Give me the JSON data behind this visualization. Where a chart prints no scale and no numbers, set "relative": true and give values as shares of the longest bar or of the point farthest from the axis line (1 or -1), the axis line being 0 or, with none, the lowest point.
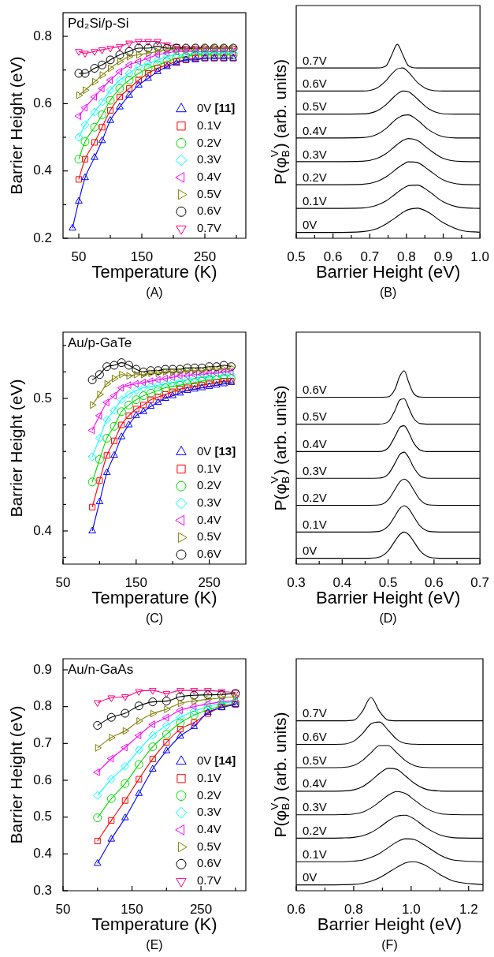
{
  "chart_data": [
    {
      "type": "line",
      "title": "Pd₂Si/p-Si",
      "xlabel": "Temperature (K)",
      "ylabel": "Barrier Height (eV)",
      "annotations": [
        "(A)"
      ],
      "legend": "bottom right",
      "x": [
        40,
        50,
        60,
        75,
        87,
        100,
        115,
        130,
        145,
        160,
        175,
        190,
        205,
        220,
        235,
        250,
        265,
        280,
        295
      ],
      "xlim": [
        25,
        315
      ],
      "xticks": [
        50,
        {
          "value": 100,
          "label": null
        },
        150,
        {
          "value": 200,
          "label": null
        },
        250,
        {
          "value": 300,
          "label": null
        }
      ],
      "ylim": [
        0.2,
        0.87
      ],
      "yticks": [
        0.2,
        {
          "value": 0.3,
          "label": null
        },
        0.4,
        {
          "value": 0.5,
          "label": null
        },
        0.6,
        {
          "value": 0.7,
          "label": null
        },
        0.8
      ],
      "series": [
        {
          "name": "0V [11]",
          "color": "#0000ff",
          "marker": "triangle",
          "values": [
            0.23,
            0.31,
            0.38,
            0.44,
            0.49,
            0.55,
            0.59,
            0.625,
            0.655,
            0.675,
            0.695,
            0.71,
            0.72,
            0.73,
            0.73,
            0.735,
            0.735,
            0.735,
            0.735
          ]
        },
        {
          "name": "0.1V",
          "color": "#ff0000",
          "marker": "square",
          "values": [
            null,
            0.375,
            0.435,
            0.485,
            0.53,
            0.58,
            0.62,
            0.645,
            0.67,
            0.69,
            0.705,
            0.715,
            0.725,
            0.73,
            0.735,
            0.735,
            0.735,
            0.735,
            0.735
          ]
        },
        {
          "name": "0.2V",
          "color": "#00dd00",
          "marker": "circle",
          "values": [
            null,
            0.435,
            0.487,
            0.53,
            0.567,
            0.61,
            0.645,
            0.67,
            0.69,
            0.705,
            0.715,
            0.725,
            0.735,
            0.74,
            0.745,
            0.745,
            0.745,
            0.745,
            0.745
          ]
        },
        {
          "name": "0.3V",
          "color": "#00ffff",
          "marker": "diamond",
          "values": [
            null,
            0.5,
            0.537,
            0.575,
            0.605,
            0.64,
            0.67,
            0.69,
            0.71,
            0.72,
            0.73,
            0.74,
            0.745,
            0.745,
            0.75,
            0.75,
            0.75,
            0.75,
            0.75
          ]
        },
        {
          "name": "0.4V",
          "color": "#ff00ff",
          "marker": "triangle-left",
          "values": [
            null,
            0.563,
            0.588,
            0.62,
            0.645,
            0.67,
            0.695,
            0.715,
            0.725,
            0.735,
            0.745,
            0.75,
            0.755,
            0.755,
            0.755,
            0.755,
            0.755,
            0.755,
            0.755
          ]
        },
        {
          "name": "0.5V",
          "color": "#808000",
          "marker": "triangle-right",
          "values": [
            null,
            0.625,
            0.64,
            0.665,
            0.685,
            0.705,
            0.725,
            0.74,
            0.745,
            0.75,
            0.755,
            0.76,
            0.76,
            0.76,
            0.76,
            0.765,
            0.765,
            0.765,
            0.765
          ]
        },
        {
          "name": "0.6V",
          "color": "#000000",
          "marker": "circle",
          "values": [
            null,
            0.69,
            0.69,
            0.705,
            0.715,
            0.73,
            0.745,
            0.755,
            0.765,
            0.765,
            0.77,
            0.765,
            0.765,
            0.765,
            0.765,
            0.765,
            0.765,
            0.765,
            0.765
          ]
        },
        {
          "name": "0.7V",
          "color": "#ff0080",
          "marker": "triangle-down",
          "values": [
            null,
            0.755,
            0.75,
            0.755,
            0.76,
            0.765,
            0.77,
            0.78,
            0.785,
            0.785,
            0.785,
            0.775,
            0.77,
            0.765,
            0.765,
            0.765,
            0.765,
            0.765,
            0.765
          ]
        }
      ]
    },
    {
      "type": "line",
      "relative": true,
      "marker": "none",
      "tick_labels": "x",
      "xlabel": "Barrier Height (eV)",
      "ylabel": "P(φ$_{B}$$^{V}$) (arb. units)",
      "annotations": [
        "(B)"
      ],
      "x": [
        0.5,
        0.6,
        0.68,
        0.72,
        0.745,
        0.76,
        0.775,
        0.79,
        0.805,
        0.83,
        0.86,
        0.9,
        0.95,
        1.0
      ],
      "xlim": [
        0.5,
        1.0
      ],
      "xticks": [
        0.5,
        {
          "value": 0.55,
          "label": null
        },
        0.6,
        {
          "value": 0.65,
          "label": null
        },
        0.7,
        {
          "value": 0.75,
          "label": null
        },
        0.8,
        {
          "value": 0.85,
          "label": null
        },
        0.9,
        {
          "value": 0.95,
          "label": null
        },
        {
          "value": 1.0,
          "label": "1.0"
        }
      ],
      "series": [
        {
          "name": "0V",
          "color": "#000000",
          "values": [
            0.03,
            0.03,
            0.034,
            0.05,
            0.074,
            0.093,
            0.113,
            0.133,
            0.148,
            0.155,
            0.133,
            0.08,
            0.04,
            0.031
          ]
        },
        {
          "name": "0.1V",
          "color": "#000000",
          "values": [
            0.154,
            0.154,
            0.156,
            0.171,
            0.193,
            0.214,
            0.236,
            0.256,
            0.271,
            0.274,
            0.243,
            0.188,
            0.158,
            0.154
          ]
        },
        {
          "name": "0.2V",
          "color": "#000000",
          "values": [
            0.276,
            0.276,
            0.278,
            0.293,
            0.317,
            0.338,
            0.361,
            0.38,
            0.394,
            0.39,
            0.353,
            0.301,
            0.278,
            0.276
          ]
        },
        {
          "name": "0.3V",
          "color": "#000000",
          "values": [
            0.395,
            0.395,
            0.397,
            0.412,
            0.437,
            0.46,
            0.484,
            0.504,
            0.514,
            0.504,
            0.46,
            0.412,
            0.396,
            0.395
          ]
        },
        {
          "name": "0.4V",
          "color": "#000000",
          "values": [
            0.517,
            0.517,
            0.519,
            0.536,
            0.567,
            0.594,
            0.618,
            0.633,
            0.636,
            0.609,
            0.56,
            0.524,
            0.517,
            0.517
          ]
        },
        {
          "name": "0.5V",
          "color": "#000000",
          "values": [
            0.64,
            0.64,
            0.641,
            0.657,
            0.69,
            0.718,
            0.744,
            0.759,
            0.756,
            0.718,
            0.668,
            0.642,
            0.64,
            0.64
          ]
        },
        {
          "name": "0.6V",
          "color": "#000000",
          "values": [
            0.759,
            0.759,
            0.759,
            0.775,
            0.814,
            0.848,
            0.873,
            0.878,
            0.857,
            0.803,
            0.767,
            0.759,
            0.759,
            0.759
          ]
        },
        {
          "name": "0.7V",
          "color": "#000000",
          "values": [
            0.878,
            0.878,
            0.878,
            0.878,
            0.89,
            0.946,
            1.0,
            0.946,
            0.89,
            0.878,
            0.878,
            0.878,
            0.878,
            0.878
          ]
        }
      ]
    },
    {
      "type": "line",
      "title": "Au/p-GaTe",
      "xlabel": "Temperature (K)",
      "ylabel": "Barrier Height (eV)",
      "annotations": [
        "(C)"
      ],
      "legend": "bottom right",
      "x": [
        90,
        100,
        110,
        120,
        130,
        140,
        150,
        160,
        170,
        180,
        190,
        200,
        210,
        220,
        230,
        240,
        250,
        260,
        270,
        280
      ],
      "xlim": [
        50,
        300
      ],
      "xticks": [
        50,
        {
          "value": 100,
          "label": null
        },
        150,
        {
          "value": 200,
          "label": null
        },
        250
      ],
      "ylim": [
        0.375,
        0.55
      ],
      "yticks": [
        {
          "value": 0.38,
          "label": null
        },
        0.4,
        {
          "value": 0.42,
          "label": null
        },
        {
          "value": 0.44,
          "label": null
        },
        {
          "value": 0.46,
          "label": null
        },
        {
          "value": 0.48,
          "label": null
        },
        0.5,
        {
          "value": 0.52,
          "label": null
        },
        {
          "value": 0.54,
          "label": null
        }
      ],
      "series": [
        {
          "name": "0V [13]",
          "color": "#0000ff",
          "marker": "triangle",
          "values": [
            0.4,
            0.422,
            0.444,
            0.457,
            0.471,
            0.48,
            0.487,
            0.49,
            0.494,
            0.497,
            0.5,
            0.502,
            0.504,
            0.506,
            0.507,
            0.508,
            0.509,
            0.51,
            0.511,
            0.512
          ]
        },
        {
          "name": "0.1V",
          "color": "#ff0000",
          "marker": "square",
          "values": [
            0.418,
            0.438,
            0.457,
            0.468,
            0.48,
            0.487,
            0.492,
            0.495,
            0.499,
            0.501,
            0.503,
            0.505,
            0.507,
            0.508,
            0.509,
            0.51,
            0.511,
            0.512,
            0.513,
            0.513
          ]
        },
        {
          "name": "0.2V",
          "color": "#00dd00",
          "marker": "circle",
          "values": [
            0.437,
            0.454,
            0.47,
            0.479,
            0.49,
            0.495,
            0.499,
            0.502,
            0.504,
            0.506,
            0.508,
            0.509,
            0.51,
            0.511,
            0.512,
            0.513,
            0.514,
            0.514,
            0.515,
            0.515
          ]
        },
        {
          "name": "0.3V",
          "color": "#00ffff",
          "marker": "diamond",
          "values": [
            0.456,
            0.47,
            0.484,
            0.491,
            0.499,
            0.503,
            0.506,
            0.508,
            0.509,
            0.51,
            0.511,
            0.512,
            0.513,
            0.514,
            0.515,
            0.516,
            0.516,
            0.517,
            0.517,
            0.518
          ]
        },
        {
          "name": "0.4V",
          "color": "#ff00ff",
          "marker": "triangle-left",
          "values": [
            0.476,
            0.487,
            0.497,
            0.502,
            0.508,
            0.51,
            0.511,
            0.512,
            0.513,
            0.514,
            0.515,
            0.516,
            0.517,
            0.517,
            0.518,
            0.518,
            0.519,
            0.519,
            0.52,
            0.52
          ]
        },
        {
          "name": "0.5V",
          "color": "#808000",
          "marker": "triangle-right",
          "values": [
            0.495,
            0.503,
            0.511,
            0.515,
            0.518,
            0.517,
            0.518,
            0.518,
            0.519,
            0.519,
            0.52,
            0.52,
            0.52,
            0.521,
            0.521,
            0.521,
            0.522,
            0.522,
            0.522,
            0.523
          ]
        },
        {
          "name": "0.6V",
          "color": "#000000",
          "marker": "circle",
          "values": [
            0.514,
            0.518,
            0.524,
            0.525,
            0.527,
            0.525,
            0.522,
            0.52,
            0.521,
            0.521,
            0.522,
            0.522,
            0.522,
            0.523,
            0.523,
            0.523,
            0.524,
            0.524,
            0.525,
            0.524
          ]
        }
      ]
    },
    {
      "type": "line",
      "relative": true,
      "marker": "none",
      "tick_labels": "x",
      "xlabel": "Barrier Height (eV)",
      "ylabel": "P(φ$_{B}$$^{V}$) (arb. units)",
      "annotations": [
        "(D)"
      ],
      "x": [
        0.3,
        0.45,
        0.48,
        0.5,
        0.515,
        0.525,
        0.535,
        0.545,
        0.555,
        0.57,
        0.59,
        0.62,
        0.7
      ],
      "xlim": [
        0.3,
        0.7
      ],
      "xticks": [
        0.3,
        {
          "value": 0.35,
          "label": null
        },
        0.4,
        {
          "value": 0.45,
          "label": null
        },
        0.5,
        {
          "value": 0.55,
          "label": null
        },
        0.6,
        {
          "value": 0.65,
          "label": null
        },
        0.7
      ],
      "series": [
        {
          "name": "0V",
          "color": "#000000",
          "values": [
            0.03,
            0.03,
            0.036,
            0.068,
            0.12,
            0.152,
            0.166,
            0.152,
            0.12,
            0.068,
            0.036,
            0.03,
            0.03
          ]
        },
        {
          "name": "0.1V",
          "color": "#000000",
          "values": [
            0.166,
            0.166,
            0.169,
            0.196,
            0.249,
            0.286,
            0.302,
            0.286,
            0.249,
            0.196,
            0.169,
            0.166,
            0.166
          ]
        },
        {
          "name": "0.2V",
          "color": "#000000",
          "values": [
            0.304,
            0.304,
            0.306,
            0.332,
            0.387,
            0.424,
            0.44,
            0.424,
            0.387,
            0.332,
            0.306,
            0.304,
            0.304
          ]
        },
        {
          "name": "0.3V",
          "color": "#000000",
          "values": [
            0.444,
            0.444,
            0.445,
            0.465,
            0.522,
            0.566,
            0.579,
            0.551,
            0.503,
            0.456,
            0.444,
            0.444,
            0.444
          ]
        },
        {
          "name": "0.4V",
          "color": "#000000",
          "values": [
            0.582,
            0.582,
            0.582,
            0.601,
            0.66,
            0.706,
            0.716,
            0.681,
            0.63,
            0.59,
            0.582,
            0.582,
            0.582
          ]
        },
        {
          "name": "0.5V",
          "color": "#000000",
          "values": [
            0.724,
            0.724,
            0.724,
            0.736,
            0.795,
            0.848,
            0.855,
            0.808,
            0.757,
            0.727,
            0.724,
            0.724,
            0.724
          ]
        },
        {
          "name": "0.6V",
          "color": "#000000",
          "values": [
            0.863,
            0.863,
            0.863,
            0.865,
            0.905,
            0.97,
            1.0,
            0.94,
            0.885,
            0.864,
            0.863,
            0.863,
            0.863
          ]
        }
      ]
    },
    {
      "type": "line",
      "title": "Au/n-GaAs",
      "xlabel": "Temperature (K)",
      "ylabel": "Barrier Height (eV)",
      "annotations": [
        "(E)"
      ],
      "legend": "bottom right",
      "x": [
        100,
        120,
        140,
        160,
        180,
        200,
        220,
        240,
        260,
        280,
        300
      ],
      "xlim": [
        50,
        315
      ],
      "xticks": [
        50,
        {
          "value": 100,
          "label": null
        },
        150,
        {
          "value": 200,
          "label": null
        },
        250,
        {
          "value": 300,
          "label": null
        }
      ],
      "ylim": [
        0.3,
        0.93
      ],
      "yticks": [
        0.3,
        0.4,
        0.5,
        0.6,
        0.7,
        0.8,
        0.9
      ],
      "series": [
        {
          "name": "0V [14]",
          "color": "#0000ff",
          "marker": "triangle",
          "values": [
            0.374,
            0.44,
            0.498,
            0.564,
            0.63,
            0.68,
            0.72,
            0.746,
            0.784,
            0.797,
            0.806
          ]
        },
        {
          "name": "0.1V",
          "color": "#ff0000",
          "marker": "square",
          "values": [
            0.435,
            0.491,
            0.545,
            0.603,
            0.658,
            0.703,
            0.739,
            0.757,
            0.781,
            0.799,
            0.806
          ]
        },
        {
          "name": "0.2V",
          "color": "#00dd00",
          "marker": "circle",
          "values": [
            0.498,
            0.55,
            0.591,
            0.643,
            0.691,
            0.725,
            0.756,
            0.777,
            0.791,
            0.802,
            0.809
          ]
        },
        {
          "name": "0.3V",
          "color": "#00ffff",
          "marker": "diamond",
          "values": [
            0.559,
            0.603,
            0.638,
            0.682,
            0.722,
            0.749,
            0.771,
            0.788,
            0.8,
            0.809,
            0.814
          ]
        },
        {
          "name": "0.4V",
          "color": "#ff00ff",
          "marker": "triangle-left",
          "values": [
            0.622,
            0.659,
            0.689,
            0.722,
            0.752,
            0.77,
            0.79,
            0.8,
            0.807,
            0.813,
            0.816
          ]
        },
        {
          "name": "0.5V",
          "color": "#808000",
          "marker": "triangle-right",
          "values": [
            0.688,
            0.716,
            0.734,
            0.761,
            0.781,
            0.793,
            0.809,
            0.815,
            0.82,
            0.824,
            0.827
          ]
        },
        {
          "name": "0.6V",
          "color": "#000000",
          "marker": "circle",
          "values": [
            0.749,
            0.771,
            0.782,
            0.802,
            0.813,
            0.815,
            0.827,
            0.831,
            0.832,
            0.833,
            0.836
          ]
        },
        {
          "name": "0.7V",
          "color": "#ff0080",
          "marker": "triangle-down",
          "values": [
            0.811,
            0.824,
            0.827,
            0.841,
            0.844,
            0.836,
            0.844,
            0.844,
            0.844,
            0.841,
            0.839
          ]
        }
      ]
    },
    {
      "type": "line",
      "relative": true,
      "marker": "none",
      "tick_labels": "x",
      "xlabel": "Barrier Height (eV)",
      "ylabel": "P(φ$_{B}$$^{V}$) (arb. units)",
      "annotations": [
        "(F)"
      ],
      "x": [
        0.6,
        0.7,
        0.76,
        0.8,
        0.83,
        0.86,
        0.89,
        0.92,
        0.95,
        0.98,
        1.01,
        1.05,
        1.1,
        1.15,
        1.25
      ],
      "xlim": [
        0.6,
        1.25
      ],
      "xticks": [
        0.6,
        {
          "value": 0.7,
          "label": null
        },
        0.8,
        {
          "value": 0.9,
          "label": null
        },
        {
          "value": 1.0,
          "label": "1.0"
        },
        {
          "value": 1.1,
          "label": null
        },
        1.2
      ],
      "series": [
        {
          "name": "0V",
          "color": "#000000",
          "values": [
            0.03,
            0.03,
            0.031,
            0.033,
            0.038,
            0.049,
            0.067,
            0.094,
            0.121,
            0.144,
            0.15,
            0.131,
            0.084,
            0.049,
            0.031
          ]
        },
        {
          "name": "0.1V",
          "color": "#000000",
          "values": [
            0.15,
            0.15,
            0.15,
            0.153,
            0.158,
            0.172,
            0.193,
            0.223,
            0.252,
            0.269,
            0.265,
            0.233,
            0.185,
            0.158,
            0.15
          ]
        },
        {
          "name": "0.2V",
          "color": "#000000",
          "values": [
            0.272,
            0.272,
            0.273,
            0.276,
            0.284,
            0.301,
            0.328,
            0.361,
            0.386,
            0.391,
            0.372,
            0.328,
            0.289,
            0.274,
            0.272
          ]
        },
        {
          "name": "0.3V",
          "color": "#000000",
          "values": [
            0.393,
            0.393,
            0.394,
            0.397,
            0.406,
            0.428,
            0.46,
            0.494,
            0.513,
            0.503,
            0.471,
            0.428,
            0.399,
            0.394,
            0.393
          ]
        },
        {
          "name": "0.4V",
          "color": "#000000",
          "values": [
            0.515,
            0.515,
            0.516,
            0.522,
            0.538,
            0.569,
            0.607,
            0.633,
            0.628,
            0.594,
            0.557,
            0.526,
            0.516,
            0.515,
            0.515
          ]
        },
        {
          "name": "0.5V",
          "color": "#000000",
          "values": [
            0.637,
            0.637,
            0.638,
            0.648,
            0.673,
            0.714,
            0.751,
            0.751,
            0.714,
            0.673,
            0.648,
            0.638,
            0.637,
            0.637,
            0.637
          ]
        },
        {
          "name": "0.6V",
          "color": "#000000",
          "values": [
            0.757,
            0.757,
            0.758,
            0.774,
            0.812,
            0.863,
            0.873,
            0.83,
            0.783,
            0.762,
            0.758,
            0.757,
            0.757,
            0.757,
            0.757
          ]
        },
        {
          "name": "0.7V",
          "color": "#000000",
          "values": [
            0.879,
            0.879,
            0.879,
            0.882,
            0.927,
            1.0,
            0.927,
            0.882,
            0.879,
            0.879,
            0.879,
            0.879,
            0.879,
            0.879,
            0.879
          ]
        }
      ]
    }
  ]
}
